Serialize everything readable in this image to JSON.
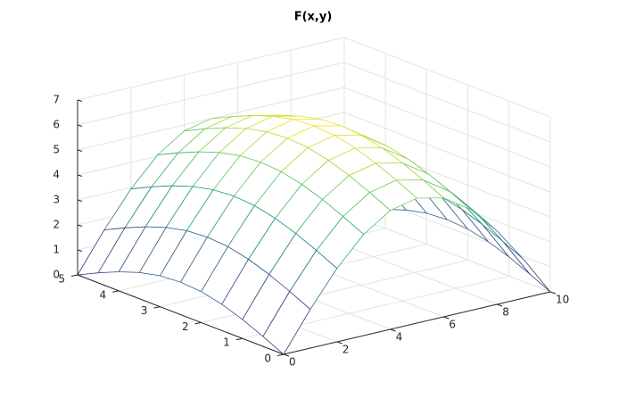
{
  "chart_data": {
    "type": "surface",
    "title": "F(x,y)",
    "x": [
      0,
      1,
      2,
      3,
      4,
      5,
      6,
      7,
      8,
      9,
      10
    ],
    "y": [
      0,
      0.5,
      1,
      1.5,
      2,
      2.5,
      3,
      3.5,
      4,
      4.5,
      5
    ],
    "z": [
      [
        0,
        1.55,
        2.94,
        4.05,
        4.76,
        5,
        4.76,
        4.05,
        2.94,
        1.55,
        0
      ],
      [
        0.4,
        1.95,
        3.34,
        4.45,
        5.16,
        5.4,
        5.16,
        4.45,
        3.34,
        1.95,
        0.4
      ],
      [
        0.76,
        2.31,
        3.7,
        4.81,
        5.52,
        5.76,
        5.52,
        4.81,
        3.7,
        2.31,
        0.76
      ],
      [
        1.05,
        2.6,
        3.99,
        5.1,
        5.81,
        6.05,
        5.81,
        5.1,
        3.99,
        2.6,
        1.05
      ],
      [
        1.24,
        2.79,
        4.18,
        5.29,
        6,
        6.24,
        6,
        5.29,
        4.18,
        2.79,
        1.24
      ],
      [
        1.3,
        2.85,
        4.24,
        5.35,
        6.06,
        6.3,
        6.06,
        5.35,
        4.24,
        2.85,
        1.3
      ],
      [
        1.24,
        2.79,
        4.18,
        5.29,
        6,
        6.24,
        6,
        5.29,
        4.18,
        2.79,
        1.24
      ],
      [
        1.05,
        2.6,
        3.99,
        5.1,
        5.81,
        6.05,
        5.81,
        5.1,
        3.99,
        2.6,
        1.05
      ],
      [
        0.76,
        2.31,
        3.7,
        4.81,
        5.52,
        5.76,
        5.52,
        4.81,
        3.7,
        2.31,
        0.76
      ],
      [
        0.4,
        1.95,
        3.34,
        4.45,
        5.16,
        5.4,
        5.16,
        4.45,
        3.34,
        1.95,
        0.4
      ],
      [
        0,
        1.55,
        2.94,
        4.05,
        4.76,
        5,
        4.76,
        4.05,
        2.94,
        1.55,
        0
      ]
    ],
    "xlim": [
      0,
      10
    ],
    "ylim": [
      0,
      5
    ],
    "zlim": [
      0,
      7
    ],
    "xticks": [
      0,
      2,
      4,
      6,
      8,
      10
    ],
    "yticks": [
      0,
      1,
      2,
      3,
      4,
      5
    ],
    "zticks": [
      0,
      1,
      2,
      3,
      4,
      5,
      6,
      7
    ],
    "grid": true,
    "colormap": "viridis"
  }
}
